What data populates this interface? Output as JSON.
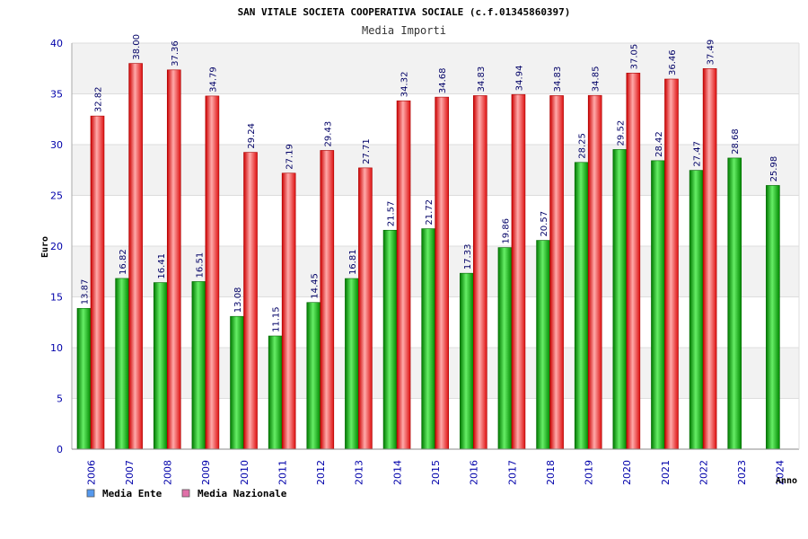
{
  "chart_data": {
    "type": "bar",
    "title": "SAN VITALE SOCIETA COOPERATIVA SOCIALE (c.f.01345860397)",
    "subtitle": "Media Importi",
    "xlabel": "Anno",
    "ylabel": "Euro",
    "ylim": [
      0,
      40
    ],
    "yticks": [
      "0",
      "5",
      "10",
      "15",
      "20",
      "25",
      "30",
      "35",
      "40"
    ],
    "grid": true,
    "legend_position": "bottom-left",
    "categories": [
      "2006",
      "2007",
      "2008",
      "2009",
      "2010",
      "2011",
      "2012",
      "2013",
      "2014",
      "2015",
      "2016",
      "2017",
      "2018",
      "2019",
      "2020",
      "2021",
      "2022",
      "2023",
      "2024"
    ],
    "series": [
      {
        "name": "Media Ente",
        "color": "#00aa00",
        "legend_color": "#5599ee",
        "values": [
          13.87,
          16.82,
          16.41,
          16.51,
          13.08,
          11.15,
          14.45,
          16.81,
          21.57,
          21.72,
          17.33,
          19.86,
          20.57,
          28.25,
          29.52,
          28.42,
          27.47,
          28.68,
          25.98
        ],
        "labels": [
          "13.87",
          "16.82",
          "16.41",
          "16.51",
          "13.08",
          "11.15",
          "14.45",
          "16.81",
          "21.57",
          "21.72",
          "17.33",
          "19.86",
          "20.57",
          "28.25",
          "29.52",
          "28.42",
          "27.47",
          "28.68",
          "25.98"
        ]
      },
      {
        "name": "Media Nazionale",
        "color": "#ee2222",
        "legend_color": "#e070a8",
        "values": [
          32.82,
          38.0,
          37.36,
          34.79,
          29.24,
          27.19,
          29.43,
          27.71,
          34.32,
          34.68,
          34.83,
          34.94,
          34.83,
          34.85,
          37.05,
          36.46,
          37.49,
          null,
          null
        ],
        "labels": [
          "32.82",
          "38.00",
          "37.36",
          "34.79",
          "29.24",
          "27.19",
          "29.43",
          "27.71",
          "34.32",
          "34.68",
          "34.83",
          "34.94",
          "34.83",
          "34.85",
          "37.05",
          "36.46",
          "37.49",
          "",
          ""
        ]
      }
    ]
  }
}
